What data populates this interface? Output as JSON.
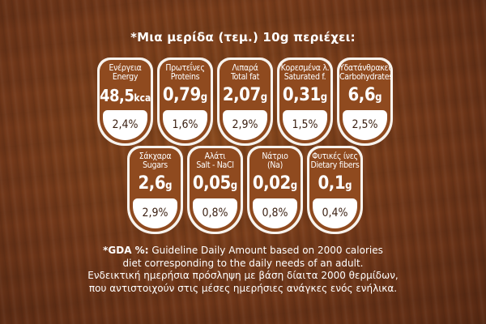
{
  "title": "*Μια μερίδα (τεμ.) 10g περιέχει:",
  "badges_row1": [
    {
      "label_el": "Ενέργεια",
      "label_en": "Energy",
      "value": "48,5",
      "unit": "kcal",
      "gda": "2,4%"
    },
    {
      "label_el": "Πρωτεΐνες",
      "label_en": "Proteins",
      "value": "0,79",
      "unit": "g",
      "gda": "1,6%"
    },
    {
      "label_el": "Λιπαρά",
      "label_en": "Total fat",
      "value": "2,07",
      "unit": "g",
      "gda": "2,9%"
    },
    {
      "label_el": "Κορεσμένα λ.",
      "label_en": "Saturated f.",
      "value": "0,31",
      "unit": "g",
      "gda": "1,5%"
    },
    {
      "label_el": "Υδατάνθρακες",
      "label_en": "Carbohydrates",
      "value": "6,6",
      "unit": "g",
      "gda": "2,5%"
    }
  ],
  "badges_row2": [
    {
      "label_el": "Σάκχαρα",
      "label_en": "Sugars",
      "value": "2,6",
      "unit": "g",
      "gda": "2,9%"
    },
    {
      "label_el": "Αλάτι",
      "label_en": "Salt - NaCl",
      "value": "0,05",
      "unit": "g",
      "gda": "0,8%"
    },
    {
      "label_el": "Νάτριο",
      "label_en": "(Na)",
      "value": "0,02",
      "unit": "g",
      "gda": "0,8%"
    },
    {
      "label_el": "Φυτικές ίνες",
      "label_en": "Dietary fibers",
      "value": "0,1",
      "unit": "g",
      "gda": "0,4%"
    }
  ],
  "footer": {
    "gda_prefix": "*GDA %:",
    "line1_rest": " Guideline Daily Amount based on 2000 calories",
    "line2": "diet corresponding to the daily needs of an adult.",
    "line3": "Ενδεικτική ημερήσια πρόσληψη με βάση δίαιτα 2000 θερμίδων,",
    "line4": "που αντιστοιχούν στις μέσες ημερήσιες ανάγκες ενός ενήλικα."
  }
}
